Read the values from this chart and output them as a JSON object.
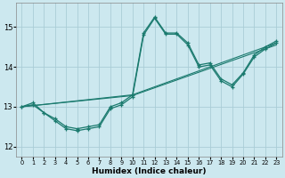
{
  "xlabel": "Humidex (Indice chaleur)",
  "ylabel": "",
  "background_color": "#cce8ef",
  "grid_color": "#aacdd6",
  "line_color": "#1a7a6e",
  "xlim": [
    -0.5,
    23.5
  ],
  "ylim": [
    11.75,
    15.6
  ],
  "xticks": [
    0,
    1,
    2,
    3,
    4,
    5,
    6,
    7,
    8,
    9,
    10,
    11,
    12,
    13,
    14,
    15,
    16,
    17,
    18,
    19,
    20,
    21,
    22,
    23
  ],
  "yticks": [
    12,
    13,
    14,
    15
  ],
  "series_upper_x": [
    0,
    1,
    2,
    3,
    4,
    5,
    6,
    7,
    8,
    9,
    10,
    11,
    12,
    13,
    14,
    15,
    16,
    17,
    18,
    19,
    20,
    21,
    22,
    23
  ],
  "series_upper_y": [
    13.0,
    13.1,
    12.85,
    12.7,
    12.5,
    12.45,
    12.5,
    12.55,
    13.0,
    13.1,
    13.3,
    14.85,
    15.25,
    14.85,
    14.85,
    14.6,
    14.05,
    14.1,
    13.7,
    13.55,
    13.85,
    14.3,
    14.5,
    14.65
  ],
  "series_lower_x": [
    0,
    1,
    2,
    3,
    4,
    5,
    6,
    7,
    8,
    9,
    10,
    11,
    12,
    13,
    14,
    15,
    16,
    17,
    18,
    19,
    20,
    21,
    22,
    23
  ],
  "series_lower_y": [
    13.0,
    13.05,
    12.85,
    12.65,
    12.45,
    12.4,
    12.45,
    12.5,
    12.95,
    13.05,
    13.25,
    14.8,
    15.22,
    14.82,
    14.82,
    14.55,
    14.0,
    14.05,
    13.65,
    13.5,
    13.82,
    14.25,
    14.45,
    14.6
  ],
  "ref_line1_x": [
    0,
    10,
    23
  ],
  "ref_line1_y": [
    13.0,
    13.3,
    14.6
  ],
  "ref_line2_x": [
    0,
    10,
    23
  ],
  "ref_line2_y": [
    13.0,
    13.28,
    14.55
  ]
}
